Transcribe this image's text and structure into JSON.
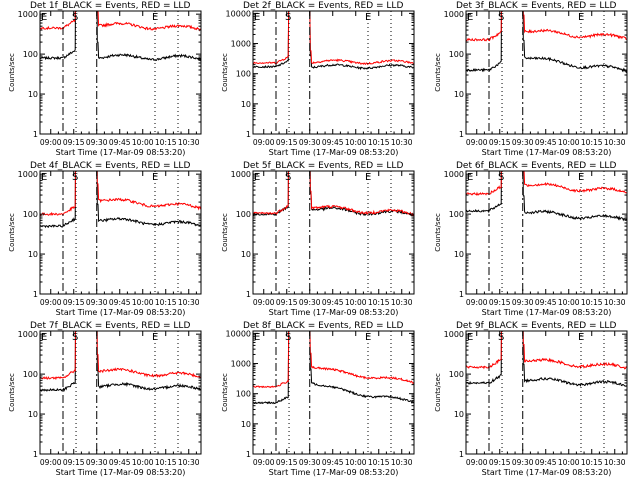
{
  "figure": {
    "title_suffix": "_BLACK = Events, RED = LLD",
    "start_time_label": "Start Time (17-Mar-09 08:53:20)",
    "ylabel": "Counts/sec",
    "xticks": [
      "09:00",
      "09:15",
      "09:30",
      "09:45",
      "10:00",
      "10:15",
      "10:30"
    ],
    "yticks": [
      "1",
      "10",
      "100",
      "1000",
      "10000"
    ],
    "markers": {
      "start": "S",
      "end": "E"
    },
    "colors": {
      "events": "#000000",
      "lld": "#ff0000",
      "axes": "#000000"
    }
  },
  "chart_data": [
    {
      "type": "line",
      "title": "Det 1f_BLACK = Events, RED = LLD",
      "det": "Det 1f",
      "xlabel": "Start Time (17-Mar-09 08:53:20)",
      "ylabel": "Counts/sec",
      "yscale": "log",
      "ylim": [
        1,
        1200
      ],
      "xlim_minutes": [
        -7,
        98
      ],
      "yticks": [
        "1",
        "10",
        "100",
        "1000"
      ],
      "series": [
        {
          "name": "Events",
          "color": "#000000",
          "pre": 80,
          "post": 90,
          "end": 80
        },
        {
          "name": "LLD",
          "color": "#ff0000",
          "pre": 450,
          "post": 600,
          "end": 440
        }
      ],
      "events": {
        "S": 16.5,
        "E": 68,
        "dashed": [
          8,
          30
        ]
      }
    },
    {
      "type": "line",
      "title": "Det 2f_BLACK = Events, RED = LLD",
      "det": "Det 2f",
      "xlabel": "Start Time (17-Mar-09 08:53:20)",
      "ylabel": "Counts/sec",
      "yscale": "log",
      "ylim": [
        1,
        12000
      ],
      "xlim_minutes": [
        -7,
        98
      ],
      "yticks": [
        "1",
        "10",
        "100",
        "1000",
        "10000"
      ],
      "series": [
        {
          "name": "Events",
          "color": "#000000",
          "pre": 170,
          "post": 180,
          "end": 170
        },
        {
          "name": "LLD",
          "color": "#ff0000",
          "pre": 230,
          "post": 260,
          "end": 240
        }
      ],
      "events": {
        "S": 16.5,
        "E": 68,
        "dashed": [
          8,
          30
        ]
      }
    },
    {
      "type": "line",
      "title": "Det 3f_BLACK = Events, RED = LLD",
      "det": "Det 3f",
      "xlabel": "Start Time (17-Mar-09 08:53:20)",
      "ylabel": "Counts/sec",
      "yscale": "log",
      "ylim": [
        1,
        1200
      ],
      "xlim_minutes": [
        -7,
        98
      ],
      "yticks": [
        "1",
        "10",
        "100",
        "1000"
      ],
      "series": [
        {
          "name": "Events",
          "color": "#000000",
          "pre": 40,
          "post": 100,
          "end": 40
        },
        {
          "name": "LLD",
          "color": "#ff0000",
          "pre": 230,
          "post": 430,
          "end": 260
        }
      ],
      "events": {
        "S": 16.5,
        "E": 68,
        "dashed": [
          8,
          30
        ]
      }
    },
    {
      "type": "line",
      "title": "Det 4f_BLACK = Events, RED = LLD",
      "det": "Det 4f",
      "xlabel": "Start Time (17-Mar-09 08:53:20)",
      "ylabel": "Counts/sec",
      "yscale": "log",
      "ylim": [
        1,
        1200
      ],
      "xlim_minutes": [
        -7,
        98
      ],
      "yticks": [
        "1",
        "10",
        "100",
        "1000"
      ],
      "series": [
        {
          "name": "Events",
          "color": "#000000",
          "pre": 50,
          "post": 80,
          "end": 55
        },
        {
          "name": "LLD",
          "color": "#ff0000",
          "pre": 100,
          "post": 260,
          "end": 150
        }
      ],
      "events": {
        "S": 16.5,
        "E": 68,
        "dashed": [
          8,
          30
        ]
      }
    },
    {
      "type": "line",
      "title": "Det 5f_BLACK = Events, RED = LLD",
      "det": "Det 5f",
      "xlabel": "Start Time (17-Mar-09 08:53:20)",
      "ylabel": "Counts/sec",
      "yscale": "log",
      "ylim": [
        1,
        1200
      ],
      "xlim_minutes": [
        -7,
        98
      ],
      "yticks": [
        "1",
        "10",
        "100",
        "1000"
      ],
      "series": [
        {
          "name": "Events",
          "color": "#000000",
          "pre": 100,
          "post": 150,
          "end": 100
        },
        {
          "name": "LLD",
          "color": "#ff0000",
          "pre": 105,
          "post": 170,
          "end": 105
        }
      ],
      "events": {
        "S": 16.5,
        "E": 68,
        "dashed": [
          8,
          30
        ]
      }
    },
    {
      "type": "line",
      "title": "Det 6f_BLACK = Events, RED = LLD",
      "det": "Det 6f",
      "xlabel": "Start Time (17-Mar-09 08:53:20)",
      "ylabel": "Counts/sec",
      "yscale": "log",
      "ylim": [
        1,
        1200
      ],
      "xlim_minutes": [
        -7,
        98
      ],
      "yticks": [
        "1",
        "10",
        "100",
        "1000"
      ],
      "series": [
        {
          "name": "Events",
          "color": "#000000",
          "pre": 120,
          "post": 130,
          "end": 75
        },
        {
          "name": "LLD",
          "color": "#ff0000",
          "pre": 320,
          "post": 620,
          "end": 370
        }
      ],
      "events": {
        "S": 16.5,
        "E": 68,
        "dashed": [
          8,
          30
        ]
      }
    },
    {
      "type": "line",
      "title": "Det 7f_BLACK = Events, RED = LLD",
      "det": "Det 7f",
      "xlabel": "Start Time (17-Mar-09 08:53:20)",
      "ylabel": "Counts/sec",
      "yscale": "log",
      "ylim": [
        1,
        1200
      ],
      "xlim_minutes": [
        -7,
        98
      ],
      "yticks": [
        "1",
        "10",
        "100",
        "1000"
      ],
      "series": [
        {
          "name": "Events",
          "color": "#000000",
          "pre": 40,
          "post": 55,
          "end": 45
        },
        {
          "name": "LLD",
          "color": "#ff0000",
          "pre": 80,
          "post": 140,
          "end": 90
        }
      ],
      "events": {
        "S": 16.5,
        "E": 68,
        "dashed": [
          8,
          30
        ]
      }
    },
    {
      "type": "line",
      "title": "Det 8f_BLACK = Events, RED = LLD",
      "det": "Det 8f",
      "xlabel": "Start Time (17-Mar-09 08:53:20)",
      "ylabel": "Counts/sec",
      "yscale": "log",
      "ylim": [
        1,
        12000
      ],
      "xlim_minutes": [
        -7,
        98
      ],
      "yticks": [
        "1",
        "10",
        "100",
        "1000",
        "10000"
      ],
      "series": [
        {
          "name": "Events",
          "color": "#000000",
          "pre": 50,
          "post": 300,
          "end": 55
        },
        {
          "name": "LLD",
          "color": "#ff0000",
          "pre": 170,
          "post": 1000,
          "end": 250
        }
      ],
      "events": {
        "S": 16.5,
        "E": 68,
        "dashed": [
          8,
          30
        ]
      }
    },
    {
      "type": "line",
      "title": "Det 9f_BLACK = Events, RED = LLD",
      "det": "Det 9f",
      "xlabel": "Start Time (17-Mar-09 08:53:20)",
      "ylabel": "Counts/sec",
      "yscale": "log",
      "ylim": [
        1,
        1200
      ],
      "xlim_minutes": [
        -7,
        98
      ],
      "yticks": [
        "1",
        "10",
        "100",
        "1000"
      ],
      "series": [
        {
          "name": "Events",
          "color": "#000000",
          "pre": 60,
          "post": 80,
          "end": 55
        },
        {
          "name": "LLD",
          "color": "#ff0000",
          "pre": 150,
          "post": 250,
          "end": 150
        }
      ],
      "events": {
        "S": 16.5,
        "E": 68,
        "dashed": [
          8,
          30
        ]
      }
    }
  ]
}
